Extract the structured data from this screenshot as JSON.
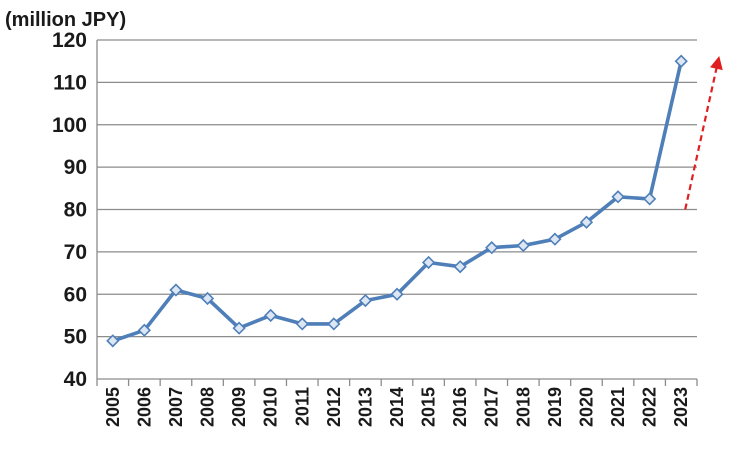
{
  "chart_data": {
    "type": "line",
    "unit_label": "(million JPY)",
    "x": [
      "2005",
      "2006",
      "2007",
      "2008",
      "2009",
      "2010",
      "2011",
      "2012",
      "2013",
      "2014",
      "2015",
      "2016",
      "2017",
      "2018",
      "2019",
      "2020",
      "2021",
      "2022",
      "2023"
    ],
    "series": [
      {
        "values": [
          49,
          51.5,
          61,
          59,
          52,
          55,
          53,
          53,
          58.5,
          60,
          67.5,
          66.5,
          71,
          71.5,
          73,
          77,
          83,
          82.5,
          115
        ]
      }
    ],
    "ylim": [
      40,
      120
    ],
    "yticks": [
      40,
      50,
      60,
      70,
      80,
      90,
      100,
      110,
      120
    ],
    "grid": "horizontal",
    "legend": "none",
    "annotation": {
      "type": "dashed-arrow",
      "from": [
        "2023",
        80
      ],
      "to_value_above": 120,
      "description": "upward trend arrow"
    },
    "colors": {
      "line": "#4f7fb9",
      "marker_fill": "#dde6f3",
      "marker_stroke": "#4f7fb9",
      "arrow": "#e02020"
    }
  }
}
